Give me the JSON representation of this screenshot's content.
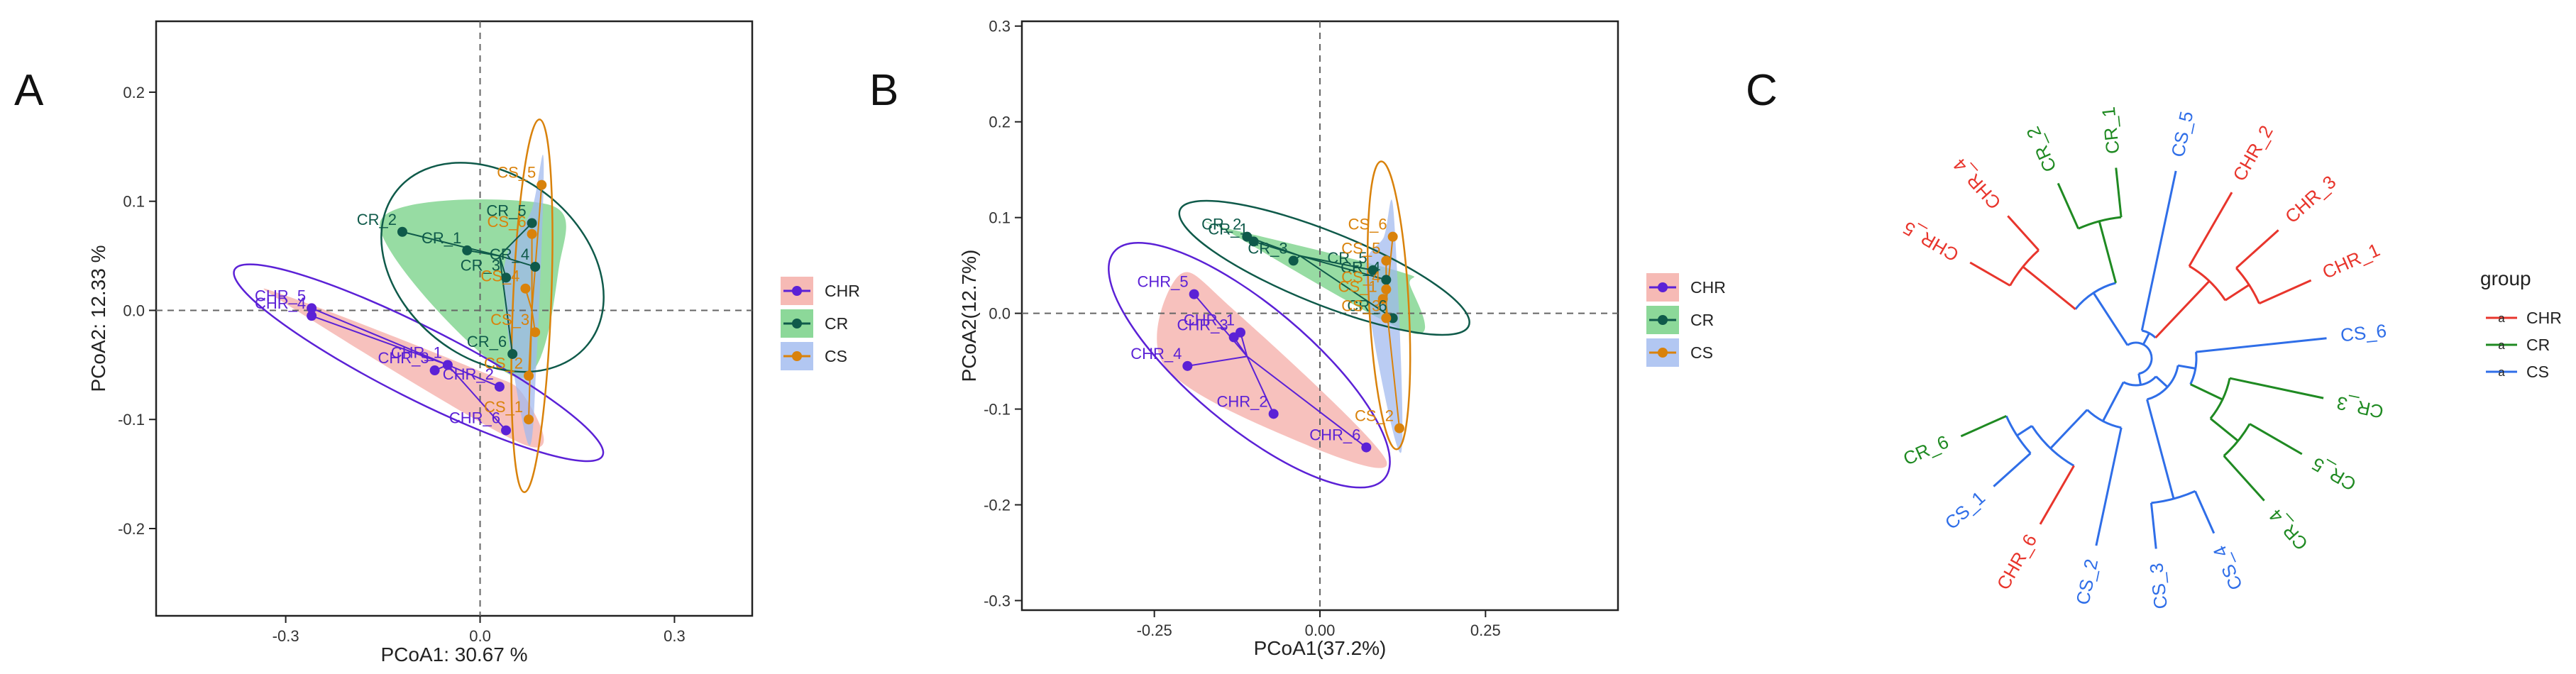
{
  "panels": {
    "a": "A",
    "b": "B",
    "c": "C"
  },
  "colors": {
    "CHR": "#5b21d6",
    "CR": "#0f5a4a",
    "CS": "#d9820b",
    "CHR_fill": "#f4a9a3",
    "CR_fill": "#6fce7f",
    "CS_fill": "#9fb9ef",
    "tree_CHR": "#e8352c",
    "tree_CR": "#1f8a22",
    "tree_CS": "#2f6ee8"
  },
  "chart_data": [
    {
      "type": "scatter",
      "title": "",
      "xlabel": "PCoA1:  30.67 %",
      "ylabel": "PCoA2:  12.33 %",
      "xlim": [
        -0.5,
        0.42
      ],
      "ylim": [
        -0.28,
        0.265
      ],
      "xticks": [
        -0.3,
        0.0,
        0.3
      ],
      "xtick_labels": [
        "-0.3",
        "0.0",
        "0.3"
      ],
      "yticks": [
        -0.2,
        -0.1,
        0.0,
        0.1,
        0.2
      ],
      "ytick_labels": [
        "-0.2",
        "-0.1",
        "0.0",
        "0.1",
        "0.2"
      ],
      "legend": [
        "CHR",
        "CR",
        "CS"
      ],
      "groups": [
        {
          "name": "CHR",
          "centroid": [
            -0.05,
            -0.05
          ],
          "points": [
            {
              "label": "CHR_1",
              "x": -0.05,
              "y": -0.05
            },
            {
              "label": "CHR_2",
              "x": 0.03,
              "y": -0.07
            },
            {
              "label": "CHR_3",
              "x": -0.07,
              "y": -0.055
            },
            {
              "label": "CHR_4",
              "x": -0.26,
              "y": -0.005
            },
            {
              "label": "CHR_5",
              "x": -0.26,
              "y": 0.002
            },
            {
              "label": "CHR_6",
              "x": 0.04,
              "y": -0.11
            }
          ]
        },
        {
          "name": "CR",
          "centroid": [
            0.03,
            0.05
          ],
          "points": [
            {
              "label": "CR_1",
              "x": -0.02,
              "y": 0.055
            },
            {
              "label": "CR_2",
              "x": -0.12,
              "y": 0.072
            },
            {
              "label": "CR_3",
              "x": 0.04,
              "y": 0.03
            },
            {
              "label": "CR_4",
              "x": 0.085,
              "y": 0.04
            },
            {
              "label": "CR_5",
              "x": 0.08,
              "y": 0.08
            },
            {
              "label": "CR_6",
              "x": 0.05,
              "y": -0.04
            }
          ]
        },
        {
          "name": "CS",
          "centroid": [
            0.08,
            0.0
          ],
          "points": [
            {
              "label": "CS_1",
              "x": 0.075,
              "y": -0.1
            },
            {
              "label": "CS_2",
              "x": 0.075,
              "y": -0.06
            },
            {
              "label": "CS_3",
              "x": 0.085,
              "y": -0.02
            },
            {
              "label": "CS_4",
              "x": 0.07,
              "y": 0.02
            },
            {
              "label": "CS_5",
              "x": 0.095,
              "y": 0.115
            },
            {
              "label": "CS_6",
              "x": 0.08,
              "y": 0.07
            }
          ]
        }
      ]
    },
    {
      "type": "scatter",
      "title": "",
      "xlabel": "PCoA1(37.2%)",
      "ylabel": "PCoA2(12.7%)",
      "xlim": [
        -0.45,
        0.45
      ],
      "ylim": [
        -0.31,
        0.305
      ],
      "xticks": [
        -0.25,
        0.0,
        0.25
      ],
      "xtick_labels": [
        "-0.25",
        "0.00",
        "0.25"
      ],
      "yticks": [
        -0.3,
        -0.2,
        -0.1,
        0.0,
        0.1,
        0.2,
        0.3
      ],
      "ytick_labels": [
        "-0.3",
        "-0.2",
        "-0.1",
        "0.0",
        "0.1",
        "0.2",
        "0.3"
      ],
      "legend": [
        "CHR",
        "CR",
        "CS"
      ],
      "groups": [
        {
          "name": "CHR",
          "centroid": [
            -0.11,
            -0.045
          ],
          "points": [
            {
              "label": "CHR_1",
              "x": -0.12,
              "y": -0.02
            },
            {
              "label": "CHR_2",
              "x": -0.07,
              "y": -0.105
            },
            {
              "label": "CHR_3",
              "x": -0.13,
              "y": -0.025
            },
            {
              "label": "CHR_4",
              "x": -0.2,
              "y": -0.055
            },
            {
              "label": "CHR_5",
              "x": -0.19,
              "y": 0.02
            },
            {
              "label": "CHR_6",
              "x": 0.07,
              "y": -0.14
            }
          ]
        },
        {
          "name": "CR",
          "centroid": [
            -0.03,
            0.06
          ],
          "points": [
            {
              "label": "CR_1",
              "x": -0.1,
              "y": 0.075
            },
            {
              "label": "CR_2",
              "x": -0.11,
              "y": 0.08
            },
            {
              "label": "CR_3",
              "x": -0.04,
              "y": 0.055
            },
            {
              "label": "CR_4",
              "x": 0.1,
              "y": 0.035
            },
            {
              "label": "CR_5",
              "x": 0.08,
              "y": 0.045
            },
            {
              "label": "CR_6",
              "x": 0.11,
              "y": -0.005
            }
          ]
        },
        {
          "name": "CS",
          "centroid": [
            0.1,
            0.01
          ],
          "points": [
            {
              "label": "CS_1",
              "x": 0.095,
              "y": 0.015
            },
            {
              "label": "CS_2",
              "x": 0.12,
              "y": -0.12
            },
            {
              "label": "CS_3",
              "x": 0.1,
              "y": -0.005
            },
            {
              "label": "CS_4",
              "x": 0.1,
              "y": 0.025
            },
            {
              "label": "CS_5",
              "x": 0.1,
              "y": 0.055
            },
            {
              "label": "CS_6",
              "x": 0.11,
              "y": 0.08
            }
          ]
        }
      ]
    },
    {
      "type": "dendrogram",
      "layout": "circular",
      "legend_title": "group",
      "legend": [
        "CHR",
        "CR",
        "CS"
      ],
      "leaves": [
        {
          "label": "CHR_5",
          "group": "CHR"
        },
        {
          "label": "CHR_4",
          "group": "CHR"
        },
        {
          "label": "CR_2",
          "group": "CR"
        },
        {
          "label": "CR_1",
          "group": "CR"
        },
        {
          "label": "CS_5",
          "group": "CS"
        },
        {
          "label": "CHR_2",
          "group": "CHR"
        },
        {
          "label": "CHR_3",
          "group": "CHR"
        },
        {
          "label": "CHR_1",
          "group": "CHR"
        },
        {
          "label": "CS_6",
          "group": "CS"
        },
        {
          "label": "CR_3",
          "group": "CR"
        },
        {
          "label": "CR_5",
          "group": "CR"
        },
        {
          "label": "CR_4",
          "group": "CR"
        },
        {
          "label": "CS_4",
          "group": "CS"
        },
        {
          "label": "CS_3",
          "group": "CS"
        },
        {
          "label": "CS_2",
          "group": "CS"
        },
        {
          "label": "CHR_6",
          "group": "CHR"
        },
        {
          "label": "CS_1",
          "group": "CS"
        },
        {
          "label": "CR_6",
          "group": "CR"
        }
      ]
    }
  ]
}
